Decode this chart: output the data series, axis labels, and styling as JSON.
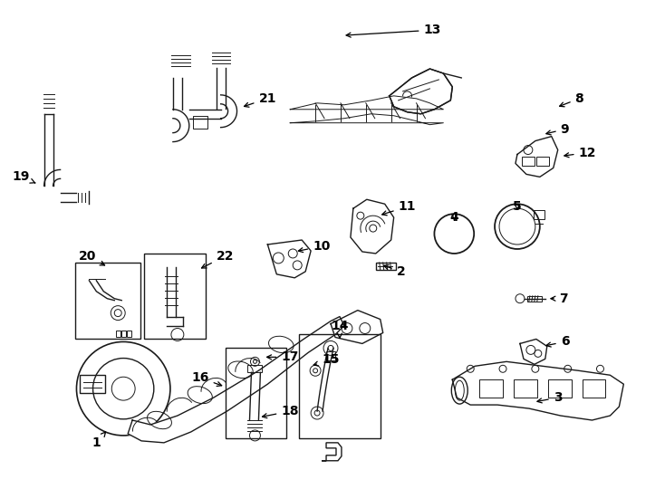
{
  "background_color": "#ffffff",
  "line_color": "#1a1a1a",
  "figsize": [
    7.34,
    5.4
  ],
  "dpi": 100,
  "border_color": "#000000",
  "label_fontsize": 10,
  "arrow_lw": 0.9
}
